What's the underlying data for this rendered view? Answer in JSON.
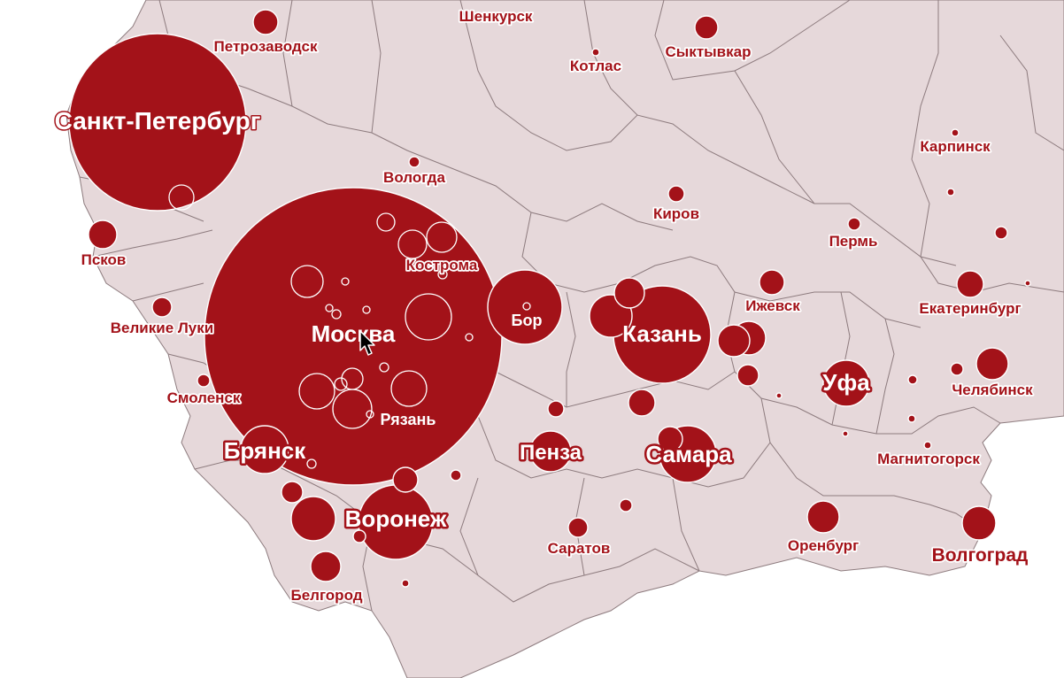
{
  "map": {
    "colors": {
      "land": "#e6d8da",
      "border": "#8d7b7e",
      "bubble": "#a31219",
      "bubble_stroke": "#ffffff",
      "background": "#ffffff"
    },
    "cities": {
      "spb": "Санкт-Петербург",
      "moscow": "Москва",
      "kazan": "Казань",
      "voronezh": "Воронеж",
      "samara": "Самара",
      "bryansk": "Брянск",
      "ufa": "Уфа",
      "penza": "Пенза",
      "kostroma": "Кострома",
      "ryazan": "Рязань",
      "bor": "Бор",
      "petrozavodsk": "Петрозаводск",
      "shenkursk": "Шенкурск",
      "syktyvkar": "Сыктывкар",
      "kotlas": "Котлас",
      "karpinsk": "Карпинск",
      "vologda": "Вологда",
      "kirov": "Киров",
      "perm": "Пермь",
      "pskov": "Псков",
      "velikie_luki": "Великие Луки",
      "izhevsk": "Ижевск",
      "ekaterinburg": "Екатеринбург",
      "smolensk": "Смоленск",
      "chelyabinsk": "Челябинск",
      "magnitogorsk": "Магнитогорск",
      "saratov": "Саратов",
      "orenburg": "Оренбург",
      "volgograd": "Волгоград",
      "belgorod": "Белгород"
    },
    "cursor": "arrow-cursor-icon"
  }
}
